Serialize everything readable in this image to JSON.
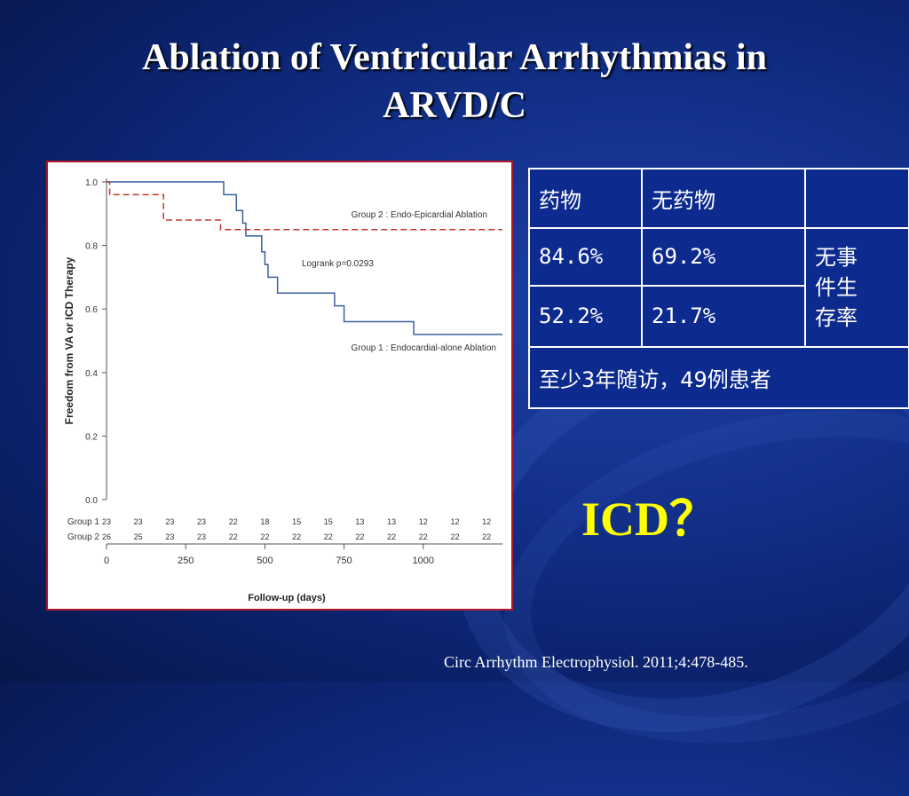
{
  "slide": {
    "title_line1": "Ablation of Ventricular Arrhythmias in",
    "title_line2": "ARVD/C",
    "icd_label": "ICD？",
    "citation": "Circ Arrhythm Electrophysiol. 2011;4:478-485."
  },
  "table": {
    "header": [
      "药物",
      "无药物",
      ""
    ],
    "rows": [
      [
        "84.6%",
        "69.2%"
      ],
      [
        "52.2%",
        "21.7%"
      ]
    ],
    "merged_label": [
      "无事",
      "件生",
      "存率"
    ],
    "footer": "至少3年随访，49例患者"
  },
  "chart_data": {
    "type": "line",
    "xlabel": "Follow-up (days)",
    "ylabel": "Freedom from VA or ICD Therapy",
    "xlim": [
      0,
      1250
    ],
    "ylim": [
      0,
      1.0
    ],
    "xticks": [
      0,
      250,
      500,
      750,
      1000
    ],
    "xtick_labels": [
      "0",
      "250",
      "500",
      "750",
      "1000"
    ],
    "yticks": [
      0.0,
      0.2,
      0.4,
      0.6,
      0.8,
      1.0
    ],
    "ytick_labels": [
      "0.0",
      "0.2",
      "0.4",
      "0.6",
      "0.8",
      "1.0"
    ],
    "annotation": "Logrank p=0.0293",
    "series": [
      {
        "name": "Group 1 : Endocardial-alone Ablation",
        "color": "#3a5fa0",
        "style": "solid",
        "steps": [
          [
            0,
            1.0
          ],
          [
            370,
            1.0
          ],
          [
            370,
            0.96
          ],
          [
            410,
            0.96
          ],
          [
            410,
            0.91
          ],
          [
            430,
            0.91
          ],
          [
            430,
            0.87
          ],
          [
            440,
            0.87
          ],
          [
            440,
            0.83
          ],
          [
            490,
            0.83
          ],
          [
            490,
            0.78
          ],
          [
            500,
            0.78
          ],
          [
            500,
            0.74
          ],
          [
            510,
            0.74
          ],
          [
            510,
            0.7
          ],
          [
            540,
            0.7
          ],
          [
            540,
            0.65
          ],
          [
            720,
            0.65
          ],
          [
            720,
            0.61
          ],
          [
            750,
            0.61
          ],
          [
            750,
            0.56
          ],
          [
            970,
            0.56
          ],
          [
            970,
            0.52
          ],
          [
            1250,
            0.52
          ]
        ]
      },
      {
        "name": "Group 2 : Endo-Epicardial Ablation",
        "color": "#c0392b",
        "style": "dashed",
        "steps": [
          [
            0,
            1.0
          ],
          [
            10,
            1.0
          ],
          [
            10,
            0.96
          ],
          [
            90,
            0.96
          ],
          [
            90,
            0.96
          ],
          [
            180,
            0.96
          ],
          [
            180,
            0.88
          ],
          [
            360,
            0.88
          ],
          [
            360,
            0.85
          ],
          [
            1250,
            0.85
          ]
        ]
      }
    ],
    "risk_table": {
      "times": [
        0,
        100,
        200,
        300,
        400,
        500,
        600,
        700,
        800,
        900,
        1000,
        1100,
        1200
      ],
      "rows": [
        {
          "label": "Group 1",
          "values": [
            "23",
            "23",
            "23",
            "23",
            "22",
            "18",
            "15",
            "15",
            "13",
            "13",
            "12",
            "12",
            "12"
          ]
        },
        {
          "label": "Group 2",
          "values": [
            "26",
            "25",
            "23",
            "23",
            "22",
            "22",
            "22",
            "22",
            "22",
            "22",
            "22",
            "22",
            "22"
          ]
        }
      ]
    }
  }
}
